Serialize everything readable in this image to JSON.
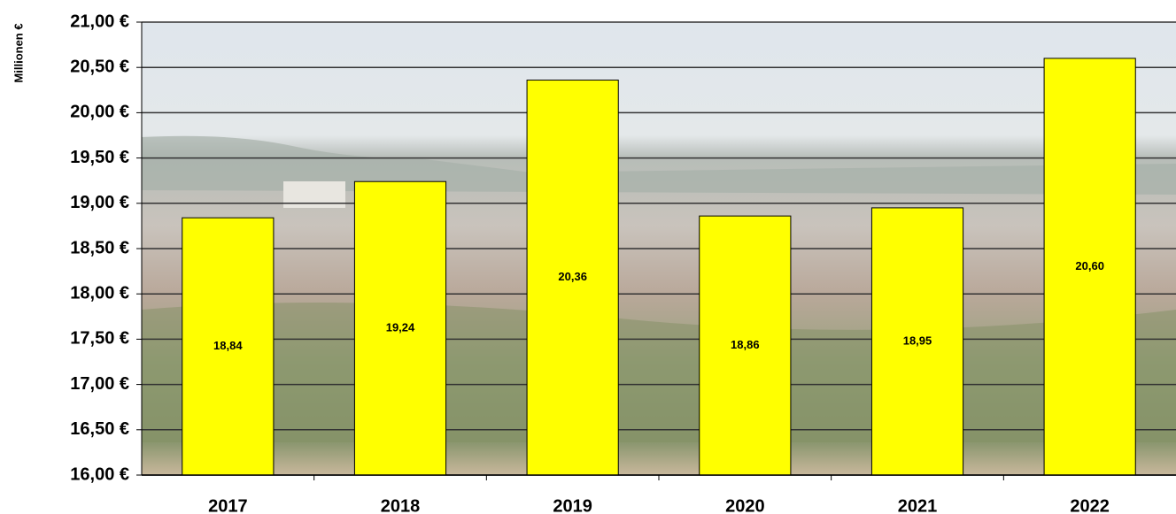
{
  "chart_data": {
    "type": "bar",
    "y_label": "Millionen €",
    "categories": [
      "2017",
      "2018",
      "2019",
      "2020",
      "2021",
      "2022"
    ],
    "values": [
      18.84,
      19.24,
      20.36,
      18.86,
      18.95,
      20.6
    ],
    "value_labels": [
      "18,84",
      "19,24",
      "20,36",
      "18,86",
      "18,95",
      "20,60"
    ],
    "color": "#ffff00",
    "ylim": [
      16,
      21
    ],
    "yticks": [
      {
        "value": 16,
        "label": "16,00 €"
      },
      {
        "value": 16.5,
        "label": "16,50 €"
      },
      {
        "value": 17,
        "label": "17,00 €"
      },
      {
        "value": 17.5,
        "label": "17,50 €"
      },
      {
        "value": 18,
        "label": "18,00 €"
      },
      {
        "value": 18.5,
        "label": "18,50 €"
      },
      {
        "value": 19,
        "label": "19,00 €"
      },
      {
        "value": 19.5,
        "label": "19,50 €"
      },
      {
        "value": 20,
        "label": "20,00 €"
      },
      {
        "value": 20.5,
        "label": "20,50 €"
      },
      {
        "value": 21,
        "label": "21,00 €"
      }
    ],
    "grid": true
  }
}
